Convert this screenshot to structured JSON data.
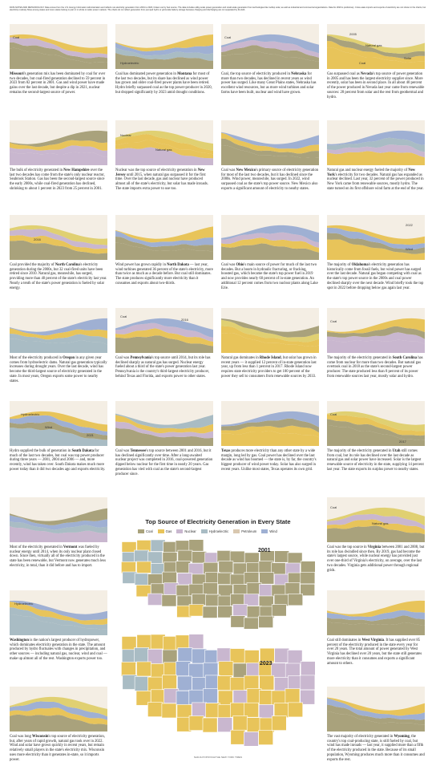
{
  "note": "DATA NOTES AND METHODOLOGY Data comes from the U.S. Energy Information Administration and reflects net electricity generation from 2001 to 2023, broken out by fuel source. The data includes utility-scale power generation and small-scale generation from technologies like rooftop solar, as well as industrial and commercial organizations. Data for 2023 is preliminary. Cross-state imports and exports of electricity are not shown in the charts, but electricity routinely flows among states and more states belong in part or in whole to wider power markets. The charts do not reflect generation from pumped hydro or grid-scale battery storage because charging and discharging are not separated by the EIA.",
  "colors": {
    "coal": "#a9a27c",
    "gas": "#e8c45a",
    "nuclear": "#c9b7cf",
    "hydro": "#a9bcc4",
    "petroleum": "#d9c8b0",
    "wind": "#9fb0d3",
    "solar": "#e0d072",
    "bg": "#f4eee4"
  },
  "states": [
    {
      "state": "Missouri",
      "chart_labels": [
        "Coal"
      ],
      "caption": "Missouri's generation mix has been dominated by coal for over two decades, but coal-fired generation declined to 59 percent in 2023 from 82 percent in 2001. Gas and wind power have made gains over the last decade, but despite a dip in 2021, nuclear remains the second-largest source of power."
    },
    {
      "state": "Montana",
      "chart_labels": [
        "Hydroelectric"
      ],
      "caption": "Coal has dominated power generation in Montana for most of the last two decades, but its share has declined as wind power has grown and older coal-fired power plants have been retired. Hydro briefly surpassed coal as the top power-producer in 2020, but dropped significantly by 2023 amid drought conditions."
    },
    {
      "state": "Nebraska",
      "chart_labels": [
        "Coal"
      ],
      "caption": "Coal, the top source of electricity produced in Nebraska for more than two decades, has declined in recent years as wind power has surged. Like many Great Plains states, Nebraska has excellent wind resources, but as more wind turbines and solar farms have been built, nuclear and wind have grown."
    },
    {
      "state": "Nevada",
      "chart_labels": [
        "2005",
        "Natural gas",
        "Coal",
        "Solar"
      ],
      "caption": "Gas surpassed coal as Nevada's top source of power generation in 2005 and has been the largest electricity supplier since. More recently, solar has been in second place. In all about 40 percent of the power produced in Nevada last year came from renewable sources: 28 percent from solar and the rest from geothermal and hydro."
    },
    {
      "state": "New Hampshire",
      "chart_labels": [],
      "caption": "The bulk of electricity generated in New Hampshire over the last two decades has come from the state's only nuclear reactor, Seabrook Station. Gas has been the second-largest source since the early 2000s, while coal-fired generation has declined, shrinking to about 1 percent in 2023 from 25 percent in 2001."
    },
    {
      "state": "New Jersey",
      "chart_labels": [
        "Nuclear",
        "Natural gas"
      ],
      "caption": "Nuclear was the top source of electricity generation in New Jersey until 2015, when natural gas surpassed it for the first time. Over the last decade, gas and nuclear have produced almost all of the state's electricity, but solar has made inroads. The state imports extra power to use too."
    },
    {
      "state": "New Mexico",
      "chart_labels": [],
      "caption": "Coal was New Mexico's primary source of electricity generation for most of the last two decades, but it has declined since the 2000s. Wind power, meanwhile, has surged. In 2022, wind surpassed coal as the state's top power source. New Mexico also exports a significant amount of electricity to nearby states."
    },
    {
      "state": "New York",
      "chart_labels": [],
      "caption": "Natural gas and nuclear energy fueled the majority of New York's electricity for two decades. Natural gas has expanded as nuclear declined. Last year, 32 percent of the power produced in New York came from renewable sources, mostly hydro. The state turned on its first offshore wind farm at the end of the year."
    },
    {
      "state": "North Carolina",
      "chart_labels": [
        "2016"
      ],
      "caption": "Coal provided the majority of North Carolina's electricity generation during the 2000s, but 32 coal-fired units have been retired since 2010. Natural gas, meanwhile, has surged, providing more than 40 percent of the state's electricity last year. Nearly a tenth of the state's power generation is fueled by solar energy."
    },
    {
      "state": "North Dakota",
      "chart_labels": [],
      "caption": "Wind power has grown rapidly in North Dakota — last year, wind turbines generated 36 percent of the state's electricity, more than twice as much as a decade before. But coal still dominates. The state produces significantly more electricity than it consumes and exports about two-thirds."
    },
    {
      "state": "Ohio",
      "chart_labels": [],
      "caption": "Coal was Ohio's main source of power for much of the last two decades. But a boom in hydraulic fracturing, or fracking, boosted gas, which became the state's top power fuel in 2019 and now provides nearly 60 percent of in-state generation. An additional 12 percent comes from two nuclear plants along Lake Erie."
    },
    {
      "state": "Oklahoma",
      "chart_labels": [
        "2022",
        "Wind"
      ],
      "caption": "The majority of Oklahoma's electricity generation has historically come from fossil fuels, but wind power has surged over the last decade. Natural gas began competing with coal as the state's top power source in the 2000s and coal power declined sharply over the next decade. Wind briefly took the top spot in 2022 before dropping below gas again last year."
    },
    {
      "state": "Oregon",
      "chart_labels": [],
      "caption": "Most of the electricity produced in Oregon in any given year comes from hydroelectric dams. Natural gas generation typically increases during drought years. Over the last decade, wind has become the third-largest source of electricity generated in the state. In most years, Oregon exports some power to nearby states."
    },
    {
      "state": "Pennsylvania",
      "chart_labels": [
        "Coal",
        "2016"
      ],
      "caption": "Coal was Pennsylvania's top source until 2014, but its role has declined sharply as natural gas has surged. Nuclear energy fueled about a third of the state's power generation last year. Pennsylvania is the country's third-largest electricity producer, behind Texas and Florida, and exports power to other states."
    },
    {
      "state": "Rhode Island",
      "chart_labels": [],
      "caption": "Natural gas dominates in Rhode Island, but solar has grown in recent years — it supplied 12 percent of in-state generation last year, up from less than 1 percent in 2017. Rhode Island now requires state electricity providers to get 100 percent of the power they sell to consumers from renewable sources by 2033."
    },
    {
      "state": "South Carolina",
      "chart_labels": [
        "Coal"
      ],
      "caption": "The majority of the electricity generated in South Carolina has come from nuclear for more than two decades. But natural gas overtook coal in 2018 as the state's second-largest power producer. The state produced less than 8 percent of its power from renewable sources last year, mostly solar and hydro."
    },
    {
      "state": "South Dakota",
      "chart_labels": [
        "Hydroelectric",
        "Wind",
        "2021"
      ],
      "caption": "Hydro supplied the bulk of generation in South Dakota for much of the last two decades, but coal was top power producer during three years — 2001, 2004 and 2006 — and, more recently, wind has taken over. South Dakota makes much more power today than it did two decades ago and exports electricity."
    },
    {
      "state": "Tennessee",
      "chart_labels": [],
      "caption": "Coal was Tennessee's top source between 2001 and 2016, but it has declined significantly over time. After a long-awaited nuclear project was completed in 2016, coal-powered generation dipped below nuclear for the first time in nearly 20 years. Gas generation has vied with coal as the state's second-largest producer since."
    },
    {
      "state": "Texas",
      "chart_labels": [],
      "caption": "Texas produces more electricity than any other state by a wide margin, long led by gas. Coal power has declined over the last decade as wind has boomed — the state is, by far, the country's biggest producer of wind power today. Solar has also surged in recent years. Unlike most states, Texas operates its own grid."
    },
    {
      "state": "Utah",
      "chart_labels": [
        "Coal",
        "2017"
      ],
      "caption": "The majority of the electricity generated in Utah still comes from coal, but its role has declined over the last decade as natural gas and solar power have increased. Solar is the largest renewable source of electricity in the state, supplying 14 percent last year. The state exports its surplus power to nearby states."
    },
    {
      "state": "Vermont",
      "chart_labels": [],
      "caption": "Most of the electricity generated in Vermont was fueled by nuclear energy until 2014, when its only nuclear plant closed down. Since then, virtually all of the electricity produced in the state has been renewable, but Vermont now generates much less electricity, in total, than it did before and has to import."
    },
    {
      "state": "Virginia",
      "chart_labels": [
        "Coal",
        "Natural gas"
      ],
      "caption": "Coal was the top source in Virginia between 2001 and 2008, but its role has dwindled since then. By 2019, gas had become the state's largest source, while nuclear energy has provided just over one-third of Virginia's electricity, on average, over the last two decades. Virginia gets additional power through regional grids."
    },
    {
      "state": "Washington",
      "chart_labels": [
        "Hydroelectric"
      ],
      "caption": "Washington is the nation's largest producer of hydropower, which dominates electricity generation in the state. The amount produced by hydro fluctuates with changes in precipitation, and other sources — including natural gas, nuclear, wind and coal — make up almost all of the rest. Washington exports power too."
    },
    {
      "state": "West Virginia",
      "chart_labels": [],
      "caption": "Coal still dominates in West Virginia. It has supplied over 85 percent of the electricity produced in the state every year for over 20 years. The total amount of power generated by West Virginia has declined over 20 years, but the state still generates more electricity than it consumes and exports a significant amount to others."
    },
    {
      "state": "Wisconsin",
      "chart_labels": [],
      "caption": "Coal was long Wisconsin's top source of electricity generation, but, after years of rapid growth, natural gas took over in 2022. Wind and solar have grown quickly in recent years, but remain relatively small players in the state's electricity mix. Wisconsin uses more electricity than it generates in-state, so it imports power."
    },
    {
      "state": "Wyoming",
      "chart_labels": [],
      "caption": "The vast majority of electricity generated in Wyoming, the country's top coal-producing state, is still fueled by coal, but wind has made inroads — last year, it supplied more than a fifth of the electricity produced in the state. Because of its small population, Wyoming produces much more than it consumes and exports the rest."
    }
  ],
  "map": {
    "title": "Top Source of Electricity Generation in Every State",
    "legend": [
      "Coal",
      "Gas",
      "Nuclear",
      "Hydroelectric",
      "Petroleum",
      "Wind"
    ],
    "year1": "2001",
    "year2": "2023",
    "credit": "NADJA POPOVICH/THE NEW YORK TIMES"
  }
}
